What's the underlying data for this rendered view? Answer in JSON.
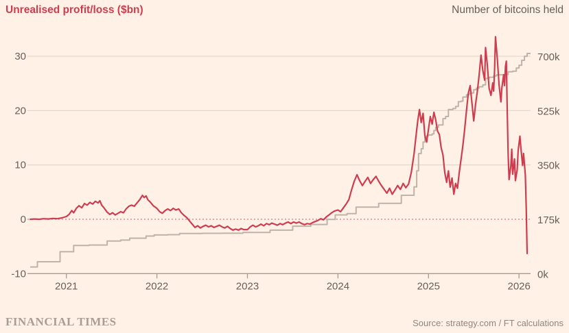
{
  "header": {
    "left_title": "Unrealised profit/loss ($bn)",
    "right_title": "Number of bitcoins held"
  },
  "footer": {
    "brand": "FINANCIAL TIMES",
    "source": "Source: strategy.com / FT calculations"
  },
  "colors": {
    "background": "#FFF1E5",
    "profit_loss_line": "#CE3C4F",
    "bitcoins_line": "#BDB3A7",
    "gridline": "#E5D9CB",
    "zero_line": "#D9777D",
    "axis_line": "#A59A8C",
    "tick_text": "#66605B"
  },
  "chart_data": {
    "type": "line",
    "title": "",
    "left_axis": {
      "title": "Unrealised profit/loss ($bn)",
      "min": -10,
      "max": 30,
      "tick_values": [
        30,
        20,
        10,
        0,
        -10
      ]
    },
    "right_axis": {
      "title": "Number of bitcoins held",
      "min_k": 0,
      "max_k": 700,
      "tick_labels": [
        "700k",
        "525k",
        "350k",
        "175k",
        "0k"
      ],
      "tick_values_k": [
        700,
        525,
        350,
        175,
        0
      ]
    },
    "x_axis": {
      "tick_labels": [
        "2021",
        "2022",
        "2023",
        "2024",
        "2025",
        "2026"
      ],
      "tick_values": [
        2021,
        2022,
        2023,
        2024,
        2025,
        2026
      ],
      "domain": [
        2020.57,
        2026.12
      ]
    },
    "zero_reference_line": 0,
    "grid": true,
    "legend_position": "none",
    "series": [
      {
        "name": "Unrealised profit/loss ($bn)",
        "axis": "left",
        "style": "line",
        "points": [
          [
            2020.6,
            0.0
          ],
          [
            2020.65,
            0.05
          ],
          [
            2020.7,
            0.0
          ],
          [
            2020.75,
            0.1
          ],
          [
            2020.8,
            0.05
          ],
          [
            2020.85,
            0.15
          ],
          [
            2020.9,
            0.1
          ],
          [
            2020.95,
            0.25
          ],
          [
            2021.0,
            0.5
          ],
          [
            2021.03,
            0.9
          ],
          [
            2021.06,
            1.6
          ],
          [
            2021.08,
            1.2
          ],
          [
            2021.11,
            2.0
          ],
          [
            2021.14,
            2.5
          ],
          [
            2021.17,
            2.1
          ],
          [
            2021.2,
            2.9
          ],
          [
            2021.23,
            2.6
          ],
          [
            2021.26,
            3.1
          ],
          [
            2021.29,
            2.8
          ],
          [
            2021.32,
            3.3
          ],
          [
            2021.35,
            3.0
          ],
          [
            2021.37,
            3.4
          ],
          [
            2021.39,
            2.6
          ],
          [
            2021.42,
            2.0
          ],
          [
            2021.45,
            1.3
          ],
          [
            2021.48,
            0.9
          ],
          [
            2021.51,
            1.2
          ],
          [
            2021.54,
            0.8
          ],
          [
            2021.57,
            1.1
          ],
          [
            2021.6,
            1.4
          ],
          [
            2021.63,
            1.2
          ],
          [
            2021.66,
            1.9
          ],
          [
            2021.69,
            2.4
          ],
          [
            2021.72,
            2.6
          ],
          [
            2021.75,
            2.4
          ],
          [
            2021.78,
            3.0
          ],
          [
            2021.81,
            3.6
          ],
          [
            2021.84,
            4.4
          ],
          [
            2021.86,
            4.0
          ],
          [
            2021.88,
            4.3
          ],
          [
            2021.9,
            3.6
          ],
          [
            2021.93,
            3.1
          ],
          [
            2021.96,
            2.5
          ],
          [
            2022.0,
            2.0
          ],
          [
            2022.03,
            1.4
          ],
          [
            2022.06,
            1.1
          ],
          [
            2022.09,
            1.6
          ],
          [
            2022.12,
            1.9
          ],
          [
            2022.15,
            1.6
          ],
          [
            2022.18,
            2.0
          ],
          [
            2022.21,
            1.7
          ],
          [
            2022.24,
            1.9
          ],
          [
            2022.27,
            1.2
          ],
          [
            2022.3,
            0.7
          ],
          [
            2022.33,
            0.3
          ],
          [
            2022.36,
            -0.3
          ],
          [
            2022.39,
            -0.9
          ],
          [
            2022.42,
            -1.5
          ],
          [
            2022.45,
            -1.2
          ],
          [
            2022.48,
            -1.6
          ],
          [
            2022.51,
            -1.3
          ],
          [
            2022.54,
            -1.1
          ],
          [
            2022.57,
            -1.4
          ],
          [
            2022.6,
            -1.2
          ],
          [
            2022.63,
            -1.5
          ],
          [
            2022.66,
            -1.3
          ],
          [
            2022.69,
            -1.1
          ],
          [
            2022.72,
            -1.4
          ],
          [
            2022.75,
            -1.6
          ],
          [
            2022.78,
            -1.3
          ],
          [
            2022.81,
            -1.7
          ],
          [
            2022.84,
            -2.0
          ],
          [
            2022.87,
            -1.8
          ],
          [
            2022.9,
            -2.0
          ],
          [
            2022.93,
            -1.7
          ],
          [
            2022.96,
            -1.9
          ],
          [
            2023.0,
            -1.9
          ],
          [
            2023.03,
            -1.4
          ],
          [
            2023.06,
            -1.1
          ],
          [
            2023.09,
            -1.4
          ],
          [
            2023.12,
            -1.2
          ],
          [
            2023.15,
            -0.9
          ],
          [
            2023.18,
            -1.2
          ],
          [
            2023.21,
            -0.8
          ],
          [
            2023.24,
            -1.0
          ],
          [
            2023.27,
            -0.7
          ],
          [
            2023.3,
            -0.9
          ],
          [
            2023.33,
            -1.1
          ],
          [
            2023.36,
            -0.8
          ],
          [
            2023.39,
            -1.0
          ],
          [
            2023.42,
            -0.7
          ],
          [
            2023.45,
            -0.5
          ],
          [
            2023.48,
            -0.8
          ],
          [
            2023.51,
            -0.5
          ],
          [
            2023.54,
            -0.7
          ],
          [
            2023.57,
            -0.5
          ],
          [
            2023.6,
            -0.8
          ],
          [
            2023.63,
            -1.0
          ],
          [
            2023.66,
            -0.8
          ],
          [
            2023.69,
            -0.9
          ],
          [
            2023.72,
            -0.6
          ],
          [
            2023.75,
            -0.4
          ],
          [
            2023.78,
            -0.2
          ],
          [
            2023.81,
            0.1
          ],
          [
            2023.84,
            -0.1
          ],
          [
            2023.87,
            0.4
          ],
          [
            2023.9,
            0.8
          ],
          [
            2023.93,
            1.2
          ],
          [
            2023.96,
            1.5
          ],
          [
            2024.0,
            1.7
          ],
          [
            2024.03,
            1.4
          ],
          [
            2024.06,
            2.1
          ],
          [
            2024.09,
            2.8
          ],
          [
            2024.12,
            3.6
          ],
          [
            2024.15,
            5.4
          ],
          [
            2024.18,
            7.0
          ],
          [
            2024.21,
            8.2
          ],
          [
            2024.24,
            7.1
          ],
          [
            2024.27,
            6.2
          ],
          [
            2024.3,
            7.0
          ],
          [
            2024.33,
            7.7
          ],
          [
            2024.36,
            6.6
          ],
          [
            2024.39,
            7.3
          ],
          [
            2024.42,
            7.9
          ],
          [
            2024.45,
            7.0
          ],
          [
            2024.48,
            6.2
          ],
          [
            2024.51,
            5.5
          ],
          [
            2024.54,
            4.8
          ],
          [
            2024.57,
            5.7
          ],
          [
            2024.6,
            4.6
          ],
          [
            2024.63,
            5.4
          ],
          [
            2024.66,
            6.2
          ],
          [
            2024.69,
            5.5
          ],
          [
            2024.72,
            6.6
          ],
          [
            2024.75,
            5.8
          ],
          [
            2024.78,
            6.5
          ],
          [
            2024.81,
            8.6
          ],
          [
            2024.84,
            12.0
          ],
          [
            2024.86,
            15.0
          ],
          [
            2024.88,
            18.0
          ],
          [
            2024.9,
            20.2
          ],
          [
            2024.92,
            17.8
          ],
          [
            2024.94,
            19.5
          ],
          [
            2024.96,
            15.4
          ],
          [
            2024.98,
            14.2
          ],
          [
            2025.0,
            16.6
          ],
          [
            2025.02,
            18.9
          ],
          [
            2025.04,
            17.5
          ],
          [
            2025.06,
            19.7
          ],
          [
            2025.08,
            18.3
          ],
          [
            2025.1,
            16.2
          ],
          [
            2025.12,
            15.6
          ],
          [
            2025.14,
            13.2
          ],
          [
            2025.16,
            11.8
          ],
          [
            2025.18,
            8.6
          ],
          [
            2025.2,
            6.8
          ],
          [
            2025.22,
            8.9
          ],
          [
            2025.24,
            5.9
          ],
          [
            2025.26,
            7.6
          ],
          [
            2025.28,
            4.6
          ],
          [
            2025.3,
            6.6
          ],
          [
            2025.32,
            5.7
          ],
          [
            2025.34,
            8.6
          ],
          [
            2025.36,
            11.1
          ],
          [
            2025.38,
            13.6
          ],
          [
            2025.4,
            16.6
          ],
          [
            2025.42,
            20.1
          ],
          [
            2025.44,
            23.2
          ],
          [
            2025.46,
            24.6
          ],
          [
            2025.48,
            21.4
          ],
          [
            2025.5,
            18.1
          ],
          [
            2025.52,
            21.2
          ],
          [
            2025.54,
            23.6
          ],
          [
            2025.56,
            26.6
          ],
          [
            2025.58,
            30.2
          ],
          [
            2025.6,
            27.4
          ],
          [
            2025.62,
            25.6
          ],
          [
            2025.63,
            31.6
          ],
          [
            2025.65,
            28.4
          ],
          [
            2025.67,
            24.1
          ],
          [
            2025.69,
            22.8
          ],
          [
            2025.71,
            25.1
          ],
          [
            2025.72,
            23.6
          ],
          [
            2025.73,
            27.6
          ],
          [
            2025.74,
            33.6
          ],
          [
            2025.76,
            29.6
          ],
          [
            2025.78,
            24.6
          ],
          [
            2025.8,
            21.6
          ],
          [
            2025.81,
            24.1
          ],
          [
            2025.83,
            26.6
          ],
          [
            2025.84,
            24.6
          ],
          [
            2025.85,
            28.1
          ],
          [
            2025.86,
            29.1
          ],
          [
            2025.87,
            20.1
          ],
          [
            2025.88,
            12.1
          ],
          [
            2025.89,
            7.3
          ],
          [
            2025.91,
            9.9
          ],
          [
            2025.92,
            12.9
          ],
          [
            2025.93,
            8.3
          ],
          [
            2025.95,
            11.1
          ],
          [
            2025.96,
            7.1
          ],
          [
            2025.98,
            9.1
          ],
          [
            2025.99,
            12.6
          ],
          [
            2026.01,
            15.3
          ],
          [
            2026.02,
            13.3
          ],
          [
            2026.04,
            9.9
          ],
          [
            2026.05,
            12.1
          ],
          [
            2026.07,
            8.1
          ],
          [
            2026.08,
            2.0
          ],
          [
            2026.09,
            -6.3
          ]
        ]
      },
      {
        "name": "Number of bitcoins held",
        "axis": "right",
        "style": "step",
        "points_k": [
          [
            2020.6,
            21.5
          ],
          [
            2020.68,
            38.2
          ],
          [
            2020.93,
            70.5
          ],
          [
            2021.08,
            90.5
          ],
          [
            2021.25,
            92.0
          ],
          [
            2021.45,
            105.0
          ],
          [
            2021.6,
            108.0
          ],
          [
            2021.7,
            114.0
          ],
          [
            2021.88,
            121.0
          ],
          [
            2021.97,
            124.4
          ],
          [
            2022.12,
            125.4
          ],
          [
            2022.25,
            129.2
          ],
          [
            2022.5,
            129.7
          ],
          [
            2022.72,
            130.0
          ],
          [
            2022.95,
            132.5
          ],
          [
            2023.25,
            140.0
          ],
          [
            2023.5,
            152.8
          ],
          [
            2023.7,
            158.2
          ],
          [
            2023.88,
            174.5
          ],
          [
            2023.97,
            189.2
          ],
          [
            2024.1,
            193.0
          ],
          [
            2024.2,
            214.2
          ],
          [
            2024.45,
            226.3
          ],
          [
            2024.7,
            252.2
          ],
          [
            2024.84,
            279.4
          ],
          [
            2024.87,
            331.2
          ],
          [
            2024.89,
            386.7
          ],
          [
            2024.92,
            402.1
          ],
          [
            2024.94,
            423.7
          ],
          [
            2024.96,
            439.0
          ],
          [
            2024.98,
            444.3
          ],
          [
            2025.0,
            446.4
          ],
          [
            2025.04,
            450.0
          ],
          [
            2025.06,
            461.0
          ],
          [
            2025.08,
            471.1
          ],
          [
            2025.11,
            478.7
          ],
          [
            2025.16,
            499.1
          ],
          [
            2025.19,
            506.1
          ],
          [
            2025.22,
            528.2
          ],
          [
            2025.27,
            531.6
          ],
          [
            2025.3,
            538.2
          ],
          [
            2025.33,
            553.6
          ],
          [
            2025.36,
            555.5
          ],
          [
            2025.38,
            568.8
          ],
          [
            2025.42,
            576.2
          ],
          [
            2025.45,
            580.3
          ],
          [
            2025.48,
            582.0
          ],
          [
            2025.5,
            592.3
          ],
          [
            2025.53,
            597.3
          ],
          [
            2025.56,
            601.8
          ],
          [
            2025.6,
            607.8
          ],
          [
            2025.63,
            628.8
          ],
          [
            2025.67,
            632.5
          ],
          [
            2025.72,
            636.5
          ],
          [
            2025.75,
            640.0
          ],
          [
            2025.8,
            640.4
          ],
          [
            2025.85,
            641.2
          ],
          [
            2025.88,
            649.9
          ],
          [
            2025.93,
            652.0
          ],
          [
            2025.97,
            662.0
          ],
          [
            2026.0,
            671.0
          ],
          [
            2026.03,
            687.0
          ],
          [
            2026.06,
            700.0
          ],
          [
            2026.09,
            709.0
          ],
          [
            2026.11,
            709.0
          ]
        ]
      }
    ]
  }
}
